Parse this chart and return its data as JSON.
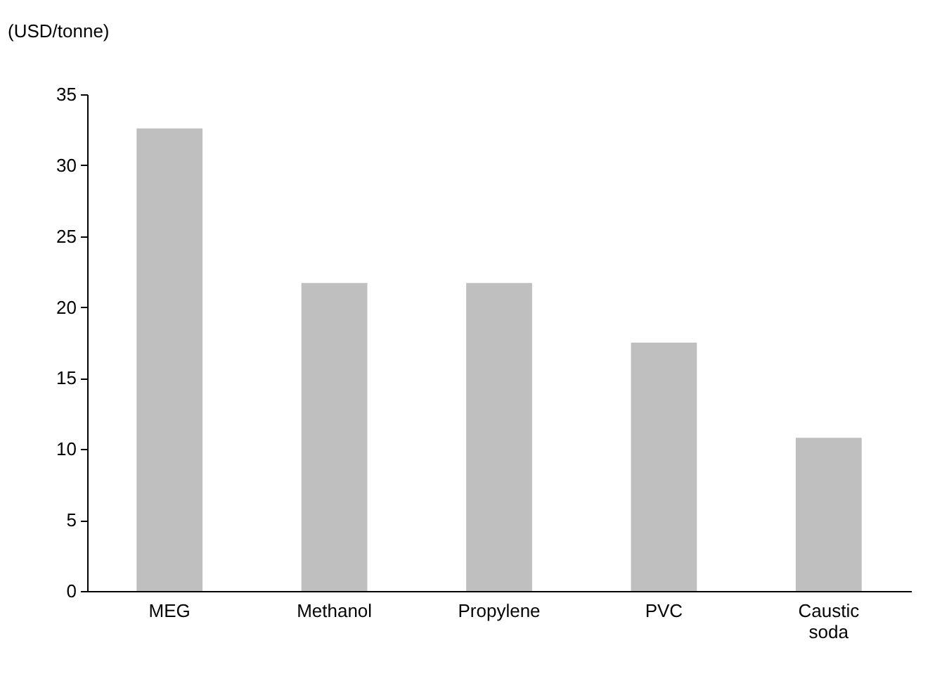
{
  "chart_data": {
    "type": "bar",
    "ylabel": "(USD/tonne)",
    "categories": [
      "MEG",
      "Methanol",
      "Propylene",
      "PVC",
      "Caustic soda"
    ],
    "values": [
      32.6,
      21.7,
      21.7,
      17.5,
      10.8
    ],
    "color": "#bfbfbf",
    "ylim": [
      0,
      35
    ],
    "yticks": [
      0,
      5,
      10,
      15,
      20,
      25,
      30,
      35
    ],
    "grid": false
  }
}
